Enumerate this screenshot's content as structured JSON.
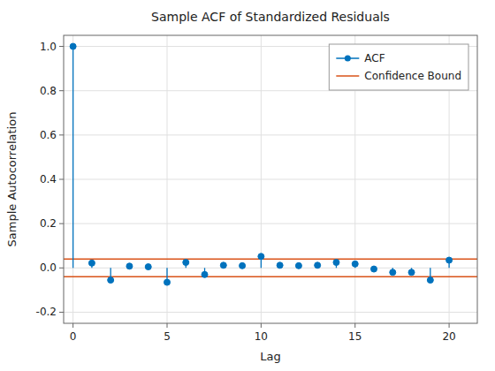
{
  "chart_data": {
    "type": "stem",
    "title": "Sample ACF of Standardized Residuals",
    "x_label": "Lag",
    "y_label": "Sample Autocorrelation",
    "x": [
      0,
      1,
      2,
      3,
      4,
      5,
      6,
      7,
      8,
      9,
      10,
      11,
      12,
      13,
      14,
      15,
      16,
      17,
      18,
      19,
      20
    ],
    "series": [
      {
        "name": "ACF",
        "color": "#0072BD",
        "marker": "circle",
        "values": [
          1.0,
          0.022,
          -0.055,
          0.008,
          0.005,
          -0.065,
          0.025,
          -0.03,
          0.012,
          0.01,
          0.052,
          0.012,
          0.01,
          0.012,
          0.025,
          0.018,
          -0.005,
          -0.02,
          -0.02,
          -0.055,
          0.035
        ]
      }
    ],
    "confidence_bound": {
      "name": "Confidence Bound",
      "color": "#D95319",
      "values": [
        0.04,
        -0.04
      ]
    },
    "xlim": [
      -0.5,
      21.5
    ],
    "ylim": [
      -0.25,
      1.05
    ],
    "xticks": [
      0,
      5,
      10,
      15,
      20
    ],
    "yticks": [
      -0.2,
      {
        "value": 0,
        "label": "0.0"
      },
      0.2,
      0.4,
      0.6,
      0.8,
      {
        "value": 1,
        "label": "1.0"
      }
    ],
    "grid": true,
    "legend": "upper right"
  }
}
